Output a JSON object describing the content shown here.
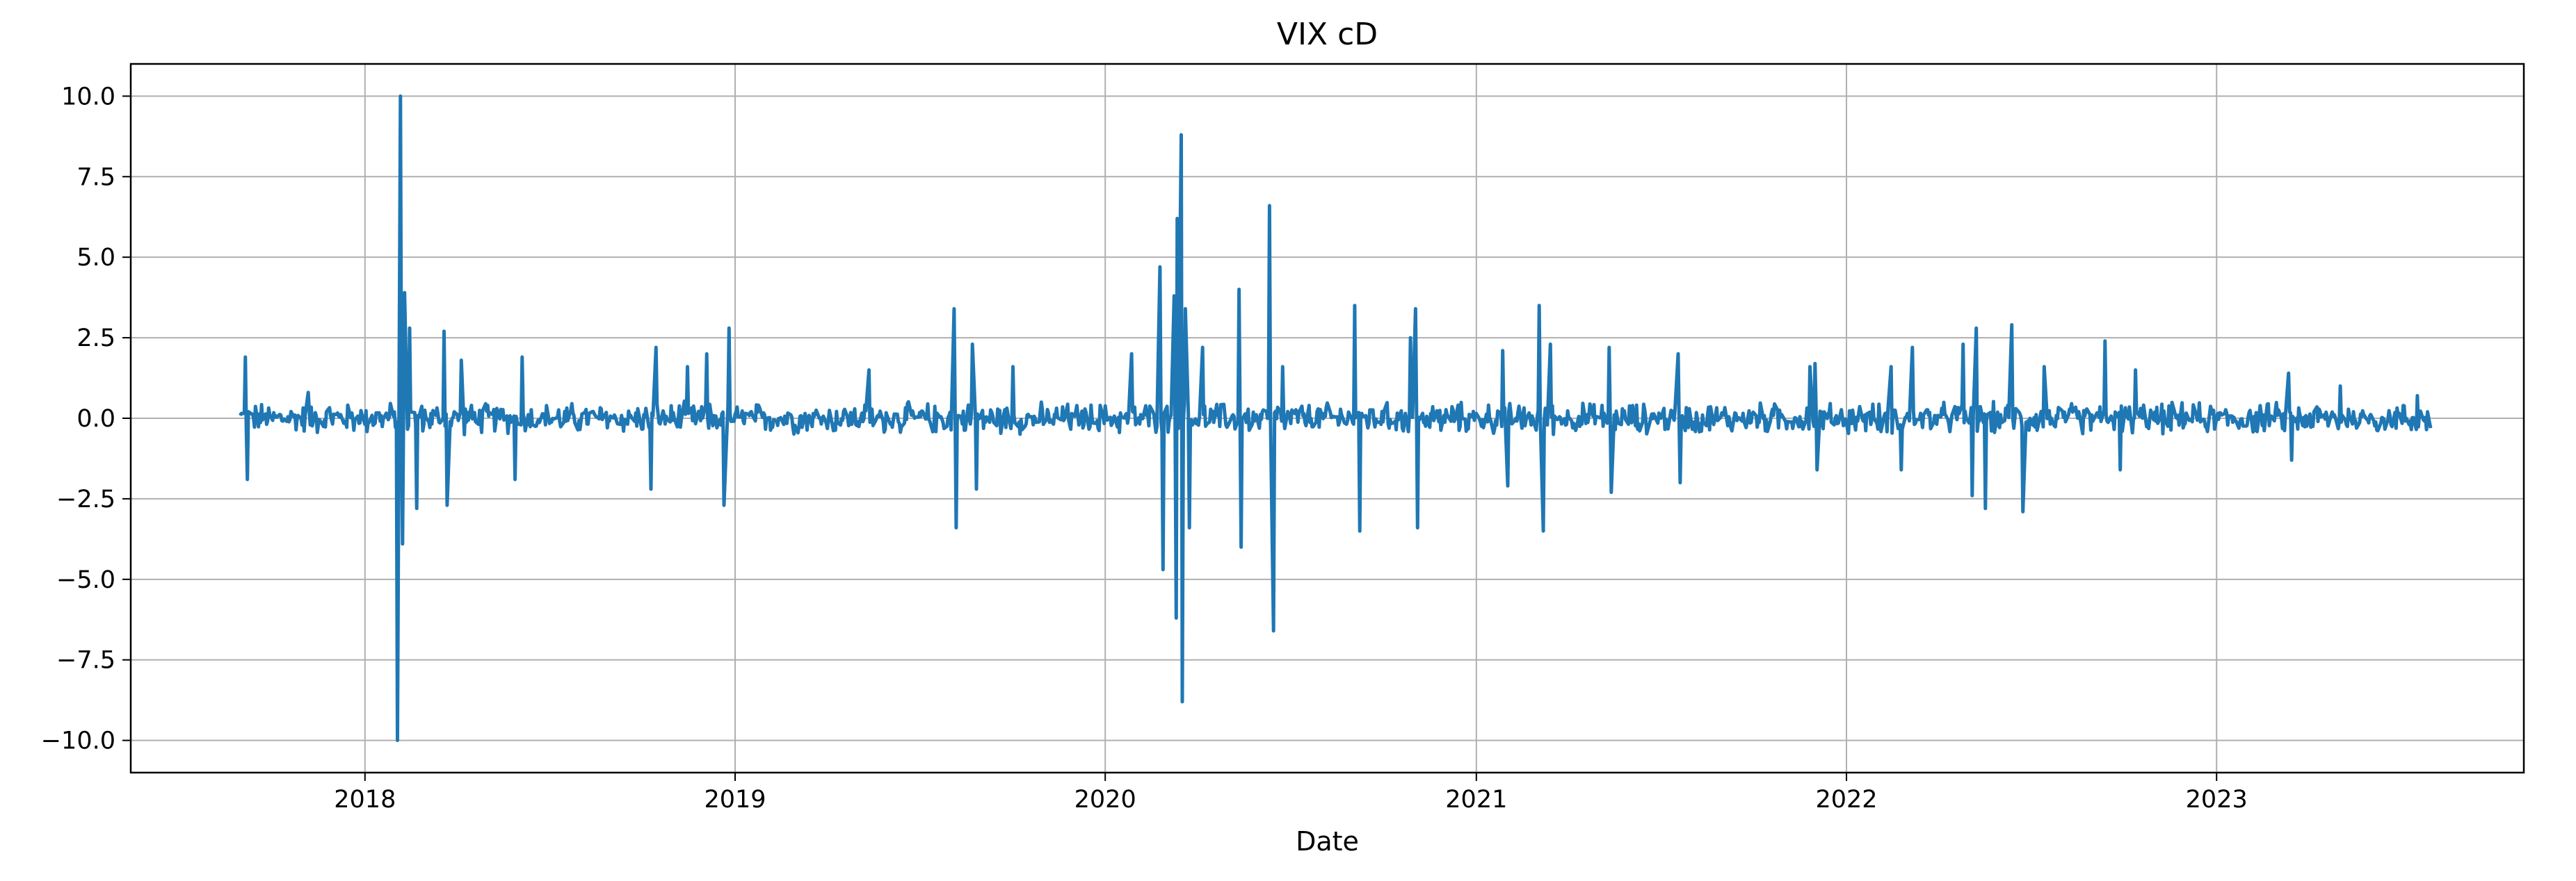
{
  "chart_data": {
    "type": "line",
    "title": "VIX cD",
    "xlabel": "Date",
    "ylabel": "",
    "xlim": [
      "2017-05-15",
      "2023-10-31"
    ],
    "ylim": [
      -11.0,
      11.0
    ],
    "x_ticks": [
      {
        "date": "2018-01-01",
        "label": "2018"
      },
      {
        "date": "2019-01-01",
        "label": "2019"
      },
      {
        "date": "2020-01-01",
        "label": "2020"
      },
      {
        "date": "2021-01-01",
        "label": "2021"
      },
      {
        "date": "2022-01-01",
        "label": "2022"
      },
      {
        "date": "2023-01-01",
        "label": "2023"
      }
    ],
    "y_ticks": [
      {
        "value": 10.0,
        "label": "10.0"
      },
      {
        "value": 7.5,
        "label": "7.5"
      },
      {
        "value": 5.0,
        "label": "5.0"
      },
      {
        "value": 2.5,
        "label": "2.5"
      },
      {
        "value": 0.0,
        "label": "0.0"
      },
      {
        "value": -2.5,
        "label": "−2.5"
      },
      {
        "value": -5.0,
        "label": "−5.0"
      },
      {
        "value": -7.5,
        "label": "−7.5"
      },
      {
        "value": -10.0,
        "label": "−10.0"
      }
    ],
    "grid": true,
    "legend": "none",
    "series": [
      {
        "color": "#1f77b4",
        "x_range": [
          "2017-08-31",
          "2023-07-31"
        ],
        "base_amplitude": 0.35,
        "spikes": [
          {
            "date": "2017-09-05",
            "value": 1.9
          },
          {
            "date": "2017-09-07",
            "value": -1.9
          },
          {
            "date": "2017-11-06",
            "value": 0.8
          },
          {
            "date": "2018-02-02",
            "value": -10.0
          },
          {
            "date": "2018-02-05",
            "value": 10.0
          },
          {
            "date": "2018-02-07",
            "value": -3.9
          },
          {
            "date": "2018-02-09",
            "value": 3.9
          },
          {
            "date": "2018-02-14",
            "value": 2.8
          },
          {
            "date": "2018-02-21",
            "value": -2.8
          },
          {
            "date": "2018-03-20",
            "value": 2.7
          },
          {
            "date": "2018-03-23",
            "value": -2.7
          },
          {
            "date": "2018-04-06",
            "value": 1.8
          },
          {
            "date": "2018-05-29",
            "value": -1.9
          },
          {
            "date": "2018-06-05",
            "value": 1.9
          },
          {
            "date": "2018-10-10",
            "value": -2.2
          },
          {
            "date": "2018-10-15",
            "value": 2.2
          },
          {
            "date": "2018-11-15",
            "value": 1.6
          },
          {
            "date": "2018-12-04",
            "value": 2.0
          },
          {
            "date": "2018-12-21",
            "value": -2.7
          },
          {
            "date": "2018-12-26",
            "value": 2.8
          },
          {
            "date": "2019-05-13",
            "value": 1.5
          },
          {
            "date": "2019-08-05",
            "value": 3.4
          },
          {
            "date": "2019-08-07",
            "value": -3.4
          },
          {
            "date": "2019-08-23",
            "value": 2.3
          },
          {
            "date": "2019-08-27",
            "value": -2.2
          },
          {
            "date": "2019-10-02",
            "value": 1.6
          },
          {
            "date": "2020-01-27",
            "value": 2.0
          },
          {
            "date": "2020-02-24",
            "value": 4.7
          },
          {
            "date": "2020-02-27",
            "value": -4.7
          },
          {
            "date": "2020-03-09",
            "value": 3.8
          },
          {
            "date": "2020-03-11",
            "value": -6.2
          },
          {
            "date": "2020-03-12",
            "value": 6.2
          },
          {
            "date": "2020-03-16",
            "value": 8.8
          },
          {
            "date": "2020-03-17",
            "value": -8.8
          },
          {
            "date": "2020-03-20",
            "value": 3.4
          },
          {
            "date": "2020-03-24",
            "value": -3.4
          },
          {
            "date": "2020-04-06",
            "value": 2.2
          },
          {
            "date": "2020-05-12",
            "value": 4.0
          },
          {
            "date": "2020-05-14",
            "value": -4.0
          },
          {
            "date": "2020-06-11",
            "value": 6.6
          },
          {
            "date": "2020-06-15",
            "value": -6.6
          },
          {
            "date": "2020-06-24",
            "value": 1.6
          },
          {
            "date": "2020-09-03",
            "value": 3.5
          },
          {
            "date": "2020-09-08",
            "value": -3.5
          },
          {
            "date": "2020-10-28",
            "value": 2.5
          },
          {
            "date": "2020-11-02",
            "value": 3.4
          },
          {
            "date": "2020-11-04",
            "value": -3.4
          },
          {
            "date": "2021-01-27",
            "value": 2.1
          },
          {
            "date": "2021-02-01",
            "value": -2.1
          },
          {
            "date": "2021-03-04",
            "value": 3.5
          },
          {
            "date": "2021-03-08",
            "value": -3.5
          },
          {
            "date": "2021-03-15",
            "value": 2.3
          },
          {
            "date": "2021-05-12",
            "value": 2.2
          },
          {
            "date": "2021-05-14",
            "value": -2.3
          },
          {
            "date": "2021-07-19",
            "value": 2.0
          },
          {
            "date": "2021-07-21",
            "value": -2.0
          },
          {
            "date": "2021-11-26",
            "value": 1.6
          },
          {
            "date": "2021-12-01",
            "value": 1.7
          },
          {
            "date": "2021-12-03",
            "value": -1.6
          },
          {
            "date": "2022-02-14",
            "value": 1.6
          },
          {
            "date": "2022-02-24",
            "value": -1.6
          },
          {
            "date": "2022-03-07",
            "value": 2.2
          },
          {
            "date": "2022-04-26",
            "value": 2.3
          },
          {
            "date": "2022-05-05",
            "value": -2.4
          },
          {
            "date": "2022-05-09",
            "value": 2.8
          },
          {
            "date": "2022-05-18",
            "value": -2.8
          },
          {
            "date": "2022-06-13",
            "value": 2.9
          },
          {
            "date": "2022-06-24",
            "value": -2.9
          },
          {
            "date": "2022-07-15",
            "value": 1.6
          },
          {
            "date": "2022-09-13",
            "value": 2.4
          },
          {
            "date": "2022-09-28",
            "value": -1.6
          },
          {
            "date": "2022-10-13",
            "value": 1.5
          },
          {
            "date": "2023-03-13",
            "value": 1.4
          },
          {
            "date": "2023-03-16",
            "value": -1.3
          },
          {
            "date": "2023-05-03",
            "value": 1.0
          },
          {
            "date": "2023-07-18",
            "value": 0.7
          }
        ]
      }
    ]
  }
}
